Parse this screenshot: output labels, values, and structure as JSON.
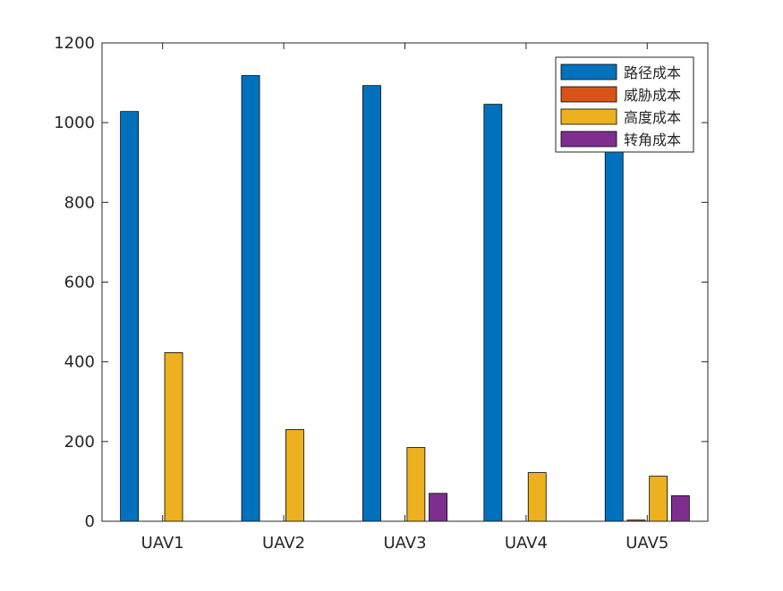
{
  "chart_data": {
    "type": "bar",
    "title": "",
    "xlabel": "",
    "ylabel": "",
    "categories": [
      "UAV1",
      "UAV2",
      "UAV3",
      "UAV4",
      "UAV5"
    ],
    "ylim": [
      0,
      1200
    ],
    "yticks": [
      0,
      200,
      400,
      600,
      800,
      1000,
      1200
    ],
    "grid": false,
    "legend_position": "top-right",
    "series": [
      {
        "name": "路径成本",
        "color": "#0072BD",
        "values": [
          1028,
          1118,
          1093,
          1046,
          1005
        ]
      },
      {
        "name": "威胁成本",
        "color": "#D95319",
        "values": [
          0,
          0,
          0,
          0,
          3
        ]
      },
      {
        "name": "高度成本",
        "color": "#EDB120",
        "values": [
          423,
          230,
          185,
          122,
          113
        ]
      },
      {
        "name": "转角成本",
        "color": "#7E2F8E",
        "values": [
          0,
          0,
          70,
          0,
          64
        ]
      }
    ]
  }
}
